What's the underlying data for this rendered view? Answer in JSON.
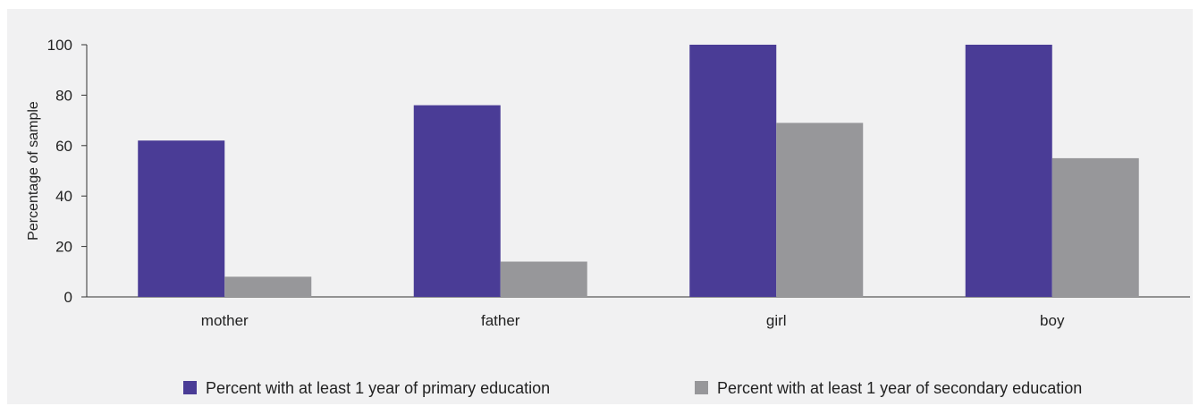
{
  "chart_data": {
    "type": "bar",
    "title": "",
    "xlabel": "",
    "ylabel": "Percentage of sample",
    "ylim": [
      0,
      100
    ],
    "yticks": [
      0,
      20,
      40,
      60,
      80,
      100
    ],
    "grid": false,
    "legend_position": "bottom",
    "categories": [
      "mother",
      "father",
      "girl",
      "boy"
    ],
    "series": [
      {
        "name": "Percent with at least 1 year of primary education",
        "color": "#4a3c96",
        "values": [
          62,
          76,
          100,
          100
        ]
      },
      {
        "name": "Percent with at least 1 year of secondary education",
        "color": "#97979a",
        "values": [
          8,
          14,
          69,
          55
        ]
      }
    ]
  }
}
